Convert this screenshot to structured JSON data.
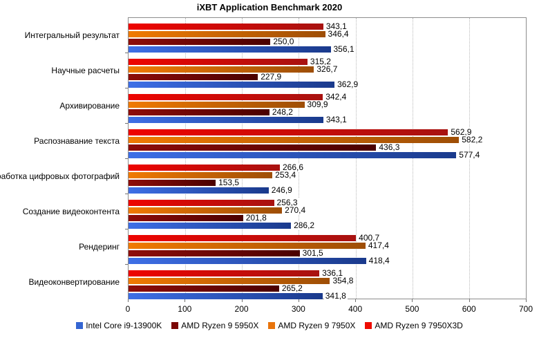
{
  "chart_data": {
    "type": "bar",
    "orientation": "horizontal",
    "title": "iXBT Application Benchmark 2020",
    "xlim": [
      0,
      700
    ],
    "xticks": [
      0,
      100,
      200,
      300,
      400,
      500,
      600,
      700
    ],
    "grid": "vertical-dotted",
    "legend_position": "bottom",
    "value_label_format": "one-decimal-comma",
    "categories": [
      "Интегральный результат",
      "Научные расчеты",
      "Архивирование",
      "Распознавание текста",
      "Обработка цифровых фотографий",
      "Создание видеоконтента",
      "Рендеринг",
      "Видеоконвертирование"
    ],
    "series": [
      {
        "name": "Intel Core i9-13900K",
        "legend_color": "#3465D2",
        "bar_gradient": [
          "#3E6FE6",
          "#1A3A8C"
        ],
        "values": [
          356.1,
          362.9,
          343.1,
          577.4,
          246.9,
          286.2,
          418.4,
          341.8
        ]
      },
      {
        "name": "AMD Ryzen 9 5950X",
        "legend_color": "#7B0605",
        "bar_gradient": [
          "#8E0D09",
          "#4A0000"
        ],
        "values": [
          250.0,
          227.9,
          248.2,
          436.3,
          153.5,
          201.8,
          301.5,
          265.2
        ]
      },
      {
        "name": "AMD Ryzen 9 7950X",
        "legend_color": "#E8740C",
        "bar_gradient": [
          "#F07A02",
          "#9E4E06"
        ],
        "values": [
          346.4,
          326.7,
          309.9,
          582.2,
          253.4,
          270.4,
          417.4,
          354.8
        ]
      },
      {
        "name": "AMD Ryzen 9 7950X3D",
        "legend_color": "#EE0B00",
        "bar_gradient": [
          "#EE0400",
          "#A81210"
        ],
        "values": [
          343.1,
          315.2,
          342.4,
          562.9,
          266.6,
          256.3,
          400.7,
          336.1
        ]
      }
    ],
    "bar_order_top_to_bottom": [
      "AMD Ryzen 9 7950X3D",
      "AMD Ryzen 9 7950X",
      "AMD Ryzen 9 5950X",
      "Intel Core i9-13900K"
    ]
  }
}
